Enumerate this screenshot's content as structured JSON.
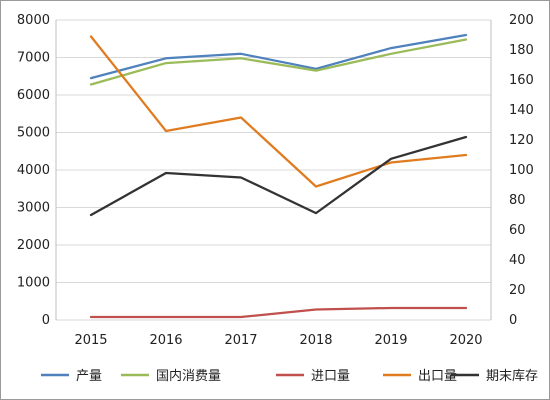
{
  "chart_data": {
    "type": "line",
    "categories": [
      "2015",
      "2016",
      "2017",
      "2018",
      "2019",
      "2020"
    ],
    "y_left": {
      "min": 0,
      "max": 8000,
      "step": 1000,
      "ticks": [
        "0",
        "1000",
        "2000",
        "3000",
        "4000",
        "5000",
        "6000",
        "7000",
        "8000"
      ]
    },
    "y_right": {
      "min": 0,
      "max": 200,
      "step": 20,
      "ticks": [
        "0",
        "20",
        "40",
        "60",
        "80",
        "100",
        "120",
        "140",
        "160",
        "180",
        "200"
      ]
    },
    "grid": "horizontal",
    "legend_position": "bottom",
    "series": [
      {
        "name": "产量",
        "axis": "left",
        "color": "#4f81bd",
        "values": [
          6450,
          6980,
          7100,
          6700,
          7250,
          7600
        ]
      },
      {
        "name": "国内消费量",
        "axis": "left",
        "color": "#9bbb59",
        "values": [
          6280,
          6850,
          6980,
          6650,
          7100,
          7480
        ]
      },
      {
        "name": "进口量",
        "axis": "right",
        "color": "#c0504d",
        "values": [
          2,
          2,
          2,
          7,
          8,
          8
        ]
      },
      {
        "name": "出口量",
        "axis": "right",
        "color": "#e07b1f",
        "values": [
          189,
          126,
          135,
          89,
          105,
          110
        ]
      },
      {
        "name": "期末库存",
        "axis": "left",
        "color": "#333333",
        "values": [
          2800,
          3920,
          3800,
          2850,
          4300,
          4880
        ]
      }
    ]
  }
}
